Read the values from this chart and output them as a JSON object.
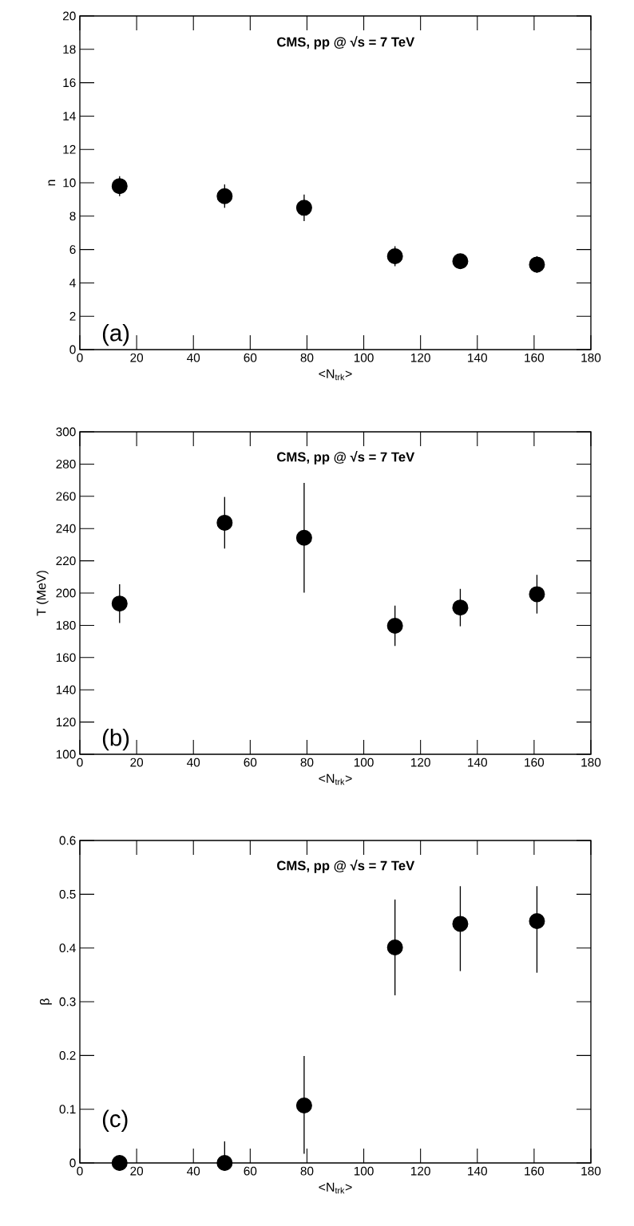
{
  "chart_data": [
    {
      "type": "scatter",
      "xlabel": "<N$_{trk}$>",
      "ylabel": "n",
      "marker": "circle",
      "color": "#000000",
      "x": [
        14,
        51,
        79,
        111,
        134,
        161
      ],
      "values": [
        9.8,
        9.2,
        8.5,
        5.6,
        5.3,
        5.1
      ],
      "errors": [
        0.6,
        0.7,
        0.8,
        0.6,
        0.3,
        0.5
      ],
      "xlim": [
        0,
        180
      ],
      "xticks": [
        0,
        20,
        40,
        60,
        80,
        100,
        120,
        140,
        160,
        180
      ],
      "ylim": [
        0,
        20
      ],
      "yticks": [
        0,
        2,
        4,
        6,
        8,
        10,
        12,
        14,
        16,
        18,
        20
      ],
      "annotations": [
        "CMS, pp @ √s = 7 TeV",
        "(a)"
      ]
    },
    {
      "type": "scatter",
      "xlabel": "<N$_{trk}$>",
      "ylabel": "T (MeV)",
      "marker": "circle",
      "color": "#000000",
      "x": [
        14,
        51,
        79,
        111,
        134,
        161
      ],
      "values": [
        193.5,
        243.6,
        234.3,
        179.7,
        191,
        199.3
      ],
      "errors": [
        12,
        16,
        34,
        12.5,
        11.6,
        12
      ],
      "xlim": [
        0,
        180
      ],
      "xticks": [
        0,
        20,
        40,
        60,
        80,
        100,
        120,
        140,
        160,
        180
      ],
      "ylim": [
        100,
        300
      ],
      "yticks": [
        100,
        120,
        140,
        160,
        180,
        200,
        220,
        240,
        260,
        280,
        300
      ],
      "annotations": [
        "CMS, pp @ √s = 7 TeV",
        "(b)"
      ]
    },
    {
      "type": "scatter",
      "xlabel": "<N$_{trk}$>",
      "ylabel": "β",
      "marker": "circle",
      "color": "#000000",
      "x": [
        14,
        51,
        79,
        111,
        134,
        161
      ],
      "values": [
        0,
        0,
        0.107,
        0.401,
        0.445,
        0.45
      ],
      "errors": [
        null,
        [
          0,
          0.04
        ],
        [
          0.017,
          0.199
        ],
        [
          0.312,
          0.49
        ],
        [
          0.357,
          0.515
        ],
        [
          0.354,
          0.515
        ]
      ],
      "xlim": [
        0,
        180
      ],
      "xticks": [
        0,
        20,
        40,
        60,
        80,
        100,
        120,
        140,
        160,
        180
      ],
      "ylim": [
        0,
        0.6
      ],
      "yticks": [
        0,
        0.1,
        0.2,
        0.3,
        0.4,
        0.5,
        0.6
      ],
      "annotations": [
        "CMS, pp @ √s = 7 TeV",
        "(c)"
      ]
    }
  ]
}
